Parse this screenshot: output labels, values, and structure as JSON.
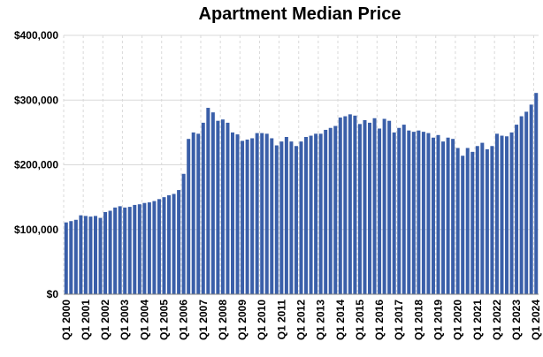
{
  "chart_data": {
    "type": "bar",
    "title": "Apartment Median Price",
    "xlabel": "",
    "ylabel": "",
    "ylim": [
      0,
      400000
    ],
    "yticks": [
      0,
      100000,
      200000,
      300000,
      400000
    ],
    "ytick_labels": [
      "$0",
      "$100,000",
      "$200,000",
      "$300,000",
      "$400,000"
    ],
    "tick_labels": [
      "Q1 2000",
      "Q1 2001",
      "Q1 2002",
      "Q1 2003",
      "Q1 2004",
      "Q1 2005",
      "Q1 2006",
      "Q1 2007",
      "Q1 2008",
      "Q1 2009",
      "Q1 2010",
      "Q1 2011",
      "Q1 2012",
      "Q1 2013",
      "Q1 2014",
      "Q1 2015",
      "Q1 2016",
      "Q1 2017",
      "Q1 2018",
      "Q1 2019",
      "Q1 2020",
      "Q1 2021",
      "Q1 2022",
      "Q1 2023",
      "Q1 2024"
    ],
    "bar_color": "#3a5fa9",
    "series": [
      {
        "name": "Apartment Median Price",
        "values": [
          111000,
          113000,
          115000,
          122000,
          121000,
          120000,
          121000,
          118000,
          127000,
          129000,
          134000,
          136000,
          134000,
          135000,
          138000,
          139000,
          141000,
          142000,
          144000,
          147000,
          150000,
          153000,
          155000,
          161000,
          186000,
          240000,
          250000,
          248000,
          265000,
          288000,
          281000,
          268000,
          270000,
          265000,
          250000,
          247000,
          237000,
          239000,
          241000,
          249000,
          249000,
          248000,
          241000,
          230000,
          236000,
          243000,
          236000,
          229000,
          236000,
          243000,
          245000,
          248000,
          248000,
          254000,
          257000,
          260000,
          273000,
          275000,
          278000,
          276000,
          263000,
          269000,
          265000,
          272000,
          256000,
          271000,
          268000,
          250000,
          257000,
          262000,
          253000,
          251000,
          253000,
          251000,
          249000,
          242000,
          246000,
          236000,
          242000,
          240000,
          226000,
          214000,
          226000,
          220000,
          229000,
          234000,
          224000,
          229000,
          248000,
          245000,
          244000,
          250000,
          262000,
          275000,
          282000,
          293000,
          311000
        ]
      }
    ]
  }
}
